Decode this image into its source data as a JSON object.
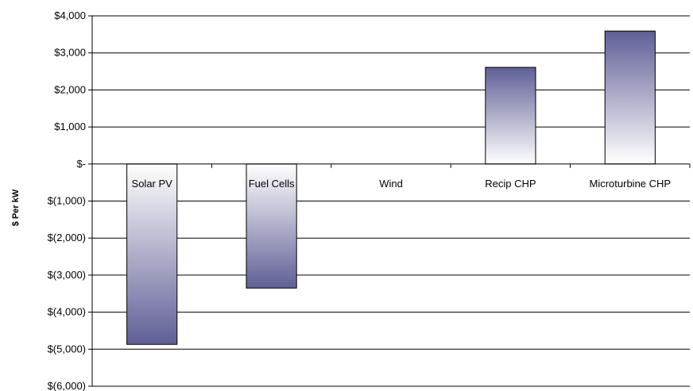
{
  "chart_data": {
    "type": "bar",
    "title": "",
    "xlabel": "",
    "ylabel": "$ Per kW",
    "categories": [
      "Solar PV",
      "Fuel Cells",
      "Wind",
      "Recip CHP",
      "Microturbine CHP"
    ],
    "values": [
      -4870,
      -3350,
      0,
      2610,
      3590
    ],
    "ylim": [
      -6000,
      4000
    ],
    "yticks": [
      4000,
      3000,
      2000,
      1000,
      0,
      -1000,
      -2000,
      -3000,
      -4000,
      -5000,
      -6000
    ],
    "ytick_labels": [
      "$4,000",
      "$3,000",
      "$2,000",
      "$1,000",
      "$-",
      "$(1,000)",
      "$(2,000)",
      "$(3,000)",
      "$(4,000)",
      "$(5,000)",
      "$(6,000)"
    ],
    "grid": true,
    "legend": "none",
    "bar_gradient": {
      "light": "#ffffff",
      "dark": "#5f5f96"
    }
  }
}
